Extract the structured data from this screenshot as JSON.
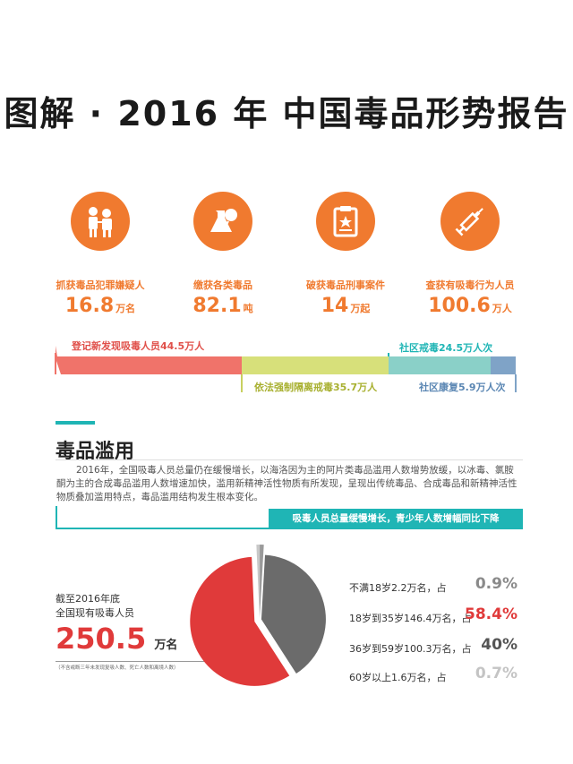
{
  "title": "图解 · 2016 年 中国毒品形势报告",
  "colors": {
    "orange": "#f07a2f",
    "red": "#e03a3a",
    "teal": "#1fb5b5",
    "salmon": "#f0736a",
    "lime": "#d7e07a",
    "blue": "#7fa3c7"
  },
  "stats": [
    {
      "icon": "police-arrest-icon",
      "label": "抓获毒品犯罪嫌疑人",
      "value": "16.8",
      "unit": "万名"
    },
    {
      "icon": "drug-flask-icon",
      "label": "缴获各类毒品",
      "value": "82.1",
      "unit": "吨"
    },
    {
      "icon": "clipboard-star-icon",
      "label": "破获毒品刑事案件",
      "value": "14",
      "unit": "万起"
    },
    {
      "icon": "syringe-icon",
      "label": "查获有吸毒行为人员",
      "value": "100.6",
      "unit": "万人"
    }
  ],
  "bar": {
    "new_users": "登记新发现吸毒人员44.5万人",
    "compulsory": "依法强制隔离戒毒35.7万人",
    "community": "社区戒毒24.5万人次",
    "rehab": "社区康复5.9万人次"
  },
  "section": {
    "heading": "毒品滥用",
    "paragraph": "2016年，全国吸毒人员总量仍在缓慢增长，以海洛因为主的阿片类毒品滥用人数增势放缓，以冰毒、氯胺酮为主的合成毒品滥用人数增速加快，滥用新精神活性物质有所发现，呈现出传统毒品、合成毒品和新精神活性物质叠加滥用特点，毒品滥用结构发生根本变化。",
    "banner": "吸毒人员总量缓慢增长，青少年人数增幅同比下降"
  },
  "summary": {
    "line1": "截至2016年底",
    "line2": "全国现有吸毒人员",
    "value": "250.5",
    "unit": "万名",
    "note": "（不含戒断三年未发现复吸人数、死亡人数和离境人数）"
  },
  "chart_data": {
    "type": "pie",
    "labels": [
      "不满18岁2.2万名，占",
      "18岁到35岁146.4万名，占",
      "36岁到59岁100.3万名，占",
      "60岁以上1.6万名，占"
    ],
    "values": [
      0.9,
      58.4,
      40,
      0.7
    ],
    "percent_labels": [
      "0.9%",
      "58.4%",
      "40%",
      "0.7%"
    ],
    "colors": [
      "#9a9a9a",
      "#e03a3a",
      "#6b6b6b",
      "#c8c8c8"
    ]
  }
}
